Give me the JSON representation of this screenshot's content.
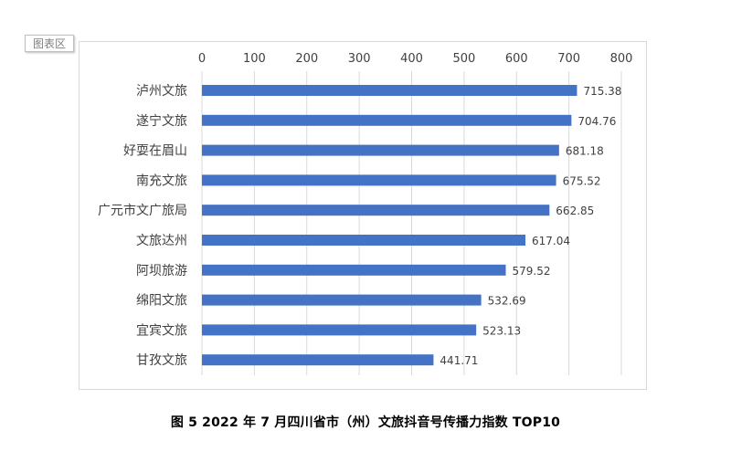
{
  "chart_area_tag": "图表区",
  "caption": "图 5 2022 年 7 月四川省市（州）文旅抖音号传播力指数 TOP10",
  "colors": {
    "bar": "#4472C4",
    "grid": "#d9d9d9",
    "text": "#404040"
  },
  "chart_data": {
    "type": "bar",
    "orientation": "horizontal",
    "title": "",
    "xlabel": "",
    "ylabel": "",
    "xlim": [
      0,
      800
    ],
    "x_ticks": [
      0,
      100,
      200,
      300,
      400,
      500,
      600,
      700,
      800
    ],
    "x_axis_position": "top",
    "grid": true,
    "categories": [
      "泸州文旅",
      "遂宁文旅",
      "好耍在眉山",
      "南充文旅",
      "广元市文广旅局",
      "文旅达州",
      "阿坝旅游",
      "绵阳文旅",
      "宜宾文旅",
      "甘孜文旅"
    ],
    "values": [
      715.38,
      704.76,
      681.18,
      675.52,
      662.85,
      617.04,
      579.52,
      532.69,
      523.13,
      441.71
    ],
    "value_labels": [
      "715.38",
      "704.76",
      "681.18",
      "675.52",
      "662.85",
      "617.04",
      "579.52",
      "532.69",
      "523.13",
      "441.71"
    ]
  }
}
